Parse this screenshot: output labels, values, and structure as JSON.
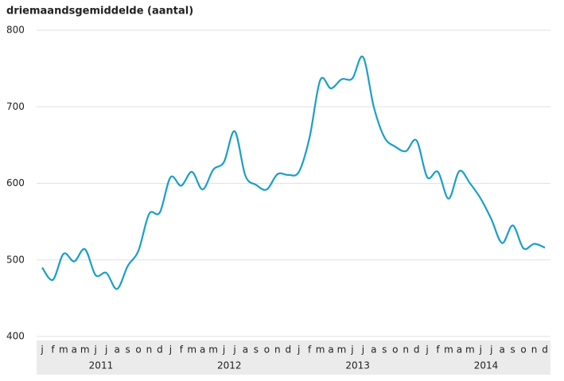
{
  "chart_data": {
    "type": "line",
    "title": "driemaandsgemiddelde (aantal)",
    "categories": [
      "j",
      "f",
      "m",
      "a",
      "m",
      "j",
      "j",
      "a",
      "s",
      "o",
      "n",
      "d",
      "j",
      "f",
      "m",
      "a",
      "m",
      "j",
      "j",
      "a",
      "s",
      "o",
      "n",
      "d",
      "j",
      "f",
      "m",
      "a",
      "m",
      "j",
      "j",
      "a",
      "s",
      "o",
      "n",
      "d",
      "j",
      "f",
      "m",
      "a",
      "m",
      "j",
      "j",
      "a",
      "s",
      "o",
      "n",
      "d"
    ],
    "year_labels": [
      "2011",
      "2012",
      "2013",
      "2014"
    ],
    "values": [
      490,
      474,
      508,
      498,
      514,
      480,
      483,
      462,
      492,
      512,
      560,
      562,
      608,
      597,
      615,
      592,
      618,
      628,
      668,
      610,
      598,
      592,
      612,
      611,
      615,
      660,
      735,
      724,
      736,
      737,
      765,
      700,
      660,
      648,
      642,
      656,
      608,
      615,
      580,
      616,
      600,
      580,
      553,
      522,
      545,
      515,
      521,
      516
    ],
    "color": "#1a9fc7",
    "ylim": [
      400,
      800
    ],
    "yticks": [
      400,
      500,
      600,
      700,
      800
    ],
    "grid": true
  }
}
